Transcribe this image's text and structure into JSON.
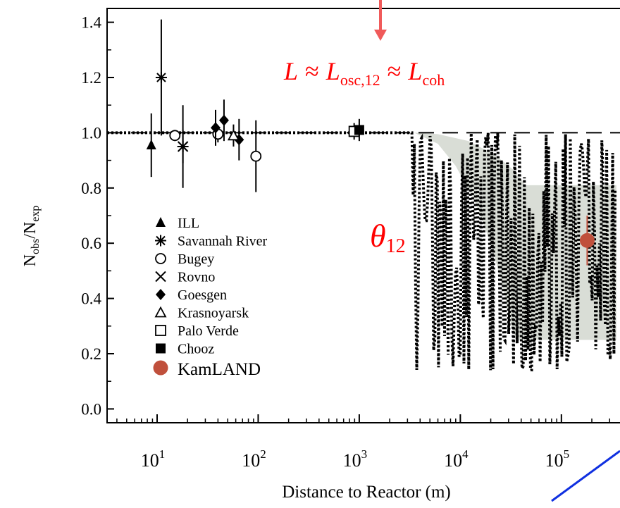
{
  "chart_data": {
    "type": "scatter",
    "title": "",
    "xlabel": "Distance to Reactor (m)",
    "ylabel_main": "N",
    "ylabel_sub1": "obs",
    "ylabel_sep": "/N",
    "ylabel_sub2": "exp",
    "x_scale": "log",
    "xlim": [
      3.2,
      380000
    ],
    "ylim": [
      -0.05,
      1.45
    ],
    "y_ticks": [
      "0.0",
      "0.2",
      "0.4",
      "0.6",
      "0.8",
      "1.0",
      "1.2",
      "1.4"
    ],
    "x_ticks": [
      {
        "base": "10",
        "exp": "1",
        "value": 10
      },
      {
        "base": "10",
        "exp": "2",
        "value": 100
      },
      {
        "base": "10",
        "exp": "3",
        "value": 1000
      },
      {
        "base": "10",
        "exp": "4",
        "value": 10000
      },
      {
        "base": "10",
        "exp": "5",
        "value": 100000
      }
    ],
    "grid": false,
    "legend_position": "left",
    "series": [
      {
        "name": "ILL",
        "marker": "triangle-filled",
        "points": [
          {
            "x": 8.76,
            "y": 0.955,
            "err": 0.115
          }
        ]
      },
      {
        "name": "Savannah River",
        "marker": "asterisk",
        "points": [
          {
            "x": 11,
            "y": 1.2,
            "err": 0.21
          },
          {
            "x": 18,
            "y": 0.95,
            "err": 0.15
          }
        ]
      },
      {
        "name": "Bugey",
        "marker": "circle-open",
        "points": [
          {
            "x": 15,
            "y": 0.99,
            "err": 0.02
          },
          {
            "x": 40,
            "y": 0.995,
            "err": 0.03
          },
          {
            "x": 95,
            "y": 0.915,
            "err": 0.13
          }
        ]
      },
      {
        "name": "Rovno",
        "marker": "x",
        "points": [
          {
            "x": 18,
            "y": 0.95,
            "err": 0.06
          }
        ]
      },
      {
        "name": "Goesgen",
        "marker": "diamond-filled",
        "points": [
          {
            "x": 37.9,
            "y": 1.018,
            "err": 0.065
          },
          {
            "x": 45.9,
            "y": 1.045,
            "err": 0.075
          },
          {
            "x": 64.7,
            "y": 0.975,
            "err": 0.075
          }
        ]
      },
      {
        "name": "Krasnoyarsk",
        "marker": "triangle-open",
        "points": [
          {
            "x": 57,
            "y": 0.99,
            "err": 0.04
          }
        ]
      },
      {
        "name": "Palo Verde",
        "marker": "square-open",
        "points": [
          {
            "x": 890,
            "y": 1.005,
            "err": 0.03
          }
        ]
      },
      {
        "name": "Chooz",
        "marker": "square-filled",
        "points": [
          {
            "x": 1000,
            "y": 1.01,
            "err": 0.04
          }
        ]
      },
      {
        "name": "KamLAND",
        "marker": "circle-filled",
        "color": "#c0503c",
        "points": [
          {
            "x": 180000,
            "y": 0.61,
            "err": 0.09
          }
        ]
      }
    ],
    "band": {
      "color": "#d9ddd6",
      "upper": [
        [
          3500,
          1.0
        ],
        [
          6000,
          0.995
        ],
        [
          12000,
          0.97
        ],
        [
          22000,
          0.92
        ],
        [
          35000,
          0.86
        ],
        [
          44000,
          0.81
        ],
        [
          350000,
          0.81
        ]
      ],
      "lower": [
        [
          3500,
          1.0
        ],
        [
          6000,
          0.96
        ],
        [
          9000,
          0.88
        ],
        [
          14000,
          0.75
        ],
        [
          20000,
          0.6
        ],
        [
          26000,
          0.45
        ],
        [
          32000,
          0.3
        ],
        [
          36000,
          0.25
        ],
        [
          350000,
          0.25
        ]
      ]
    },
    "flat_line_y": 1.0
  },
  "annotations": {
    "equation": {
      "L1": "L",
      "approx1": "≈",
      "L2": "L",
      "sub1": "osc,12",
      "approx2": "≈",
      "L3": "L",
      "sub2": "coh"
    },
    "theta": {
      "symbol": "θ",
      "sub": "12"
    }
  },
  "colors": {
    "annotation": "#ff0000",
    "arrow": "#f05a5a",
    "kamland": "#c0503c",
    "band": "#d9ddd6",
    "blue_line": "#1030e0"
  }
}
